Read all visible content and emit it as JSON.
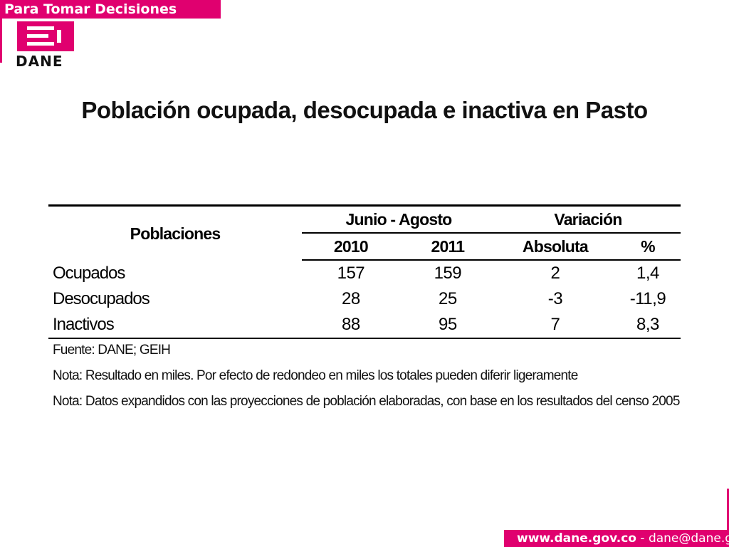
{
  "header": {
    "banner_text": "Para Tomar Decisiones",
    "logo_text": "DANE",
    "brand_color": "#e0006f"
  },
  "page": {
    "title": "Población ocupada, desocupada e inactiva en Pasto"
  },
  "table": {
    "col_poblaciones": "Poblaciones",
    "group_periodo": "Junio - Agosto",
    "group_variacion": "Variación",
    "sub_2010": "2010",
    "sub_2011": "2011",
    "sub_absoluta": "Absoluta",
    "sub_pct": "%",
    "rows": [
      {
        "label": "Ocupados",
        "v2010": "157",
        "v2011": "159",
        "abs": "2",
        "pct": "1,4"
      },
      {
        "label": "Desocupados",
        "v2010": "28",
        "v2011": "25",
        "abs": "-3",
        "pct": "-11,9"
      },
      {
        "label": "Inactivos",
        "v2010": "88",
        "v2011": "95",
        "abs": "7",
        "pct": "8,3"
      }
    ]
  },
  "notes": {
    "fuente": "Fuente: DANE; GEIH",
    "nota1": "Nota: Resultado en miles. Por efecto de redondeo en miles los totales pueden diferir ligeramente",
    "nota2": "Nota: Datos expandidos con las proyecciones de población elaboradas, con base en los resultados del censo 2005"
  },
  "footer": {
    "site": "www.dane.gov.co",
    "separator": " - ",
    "email": "dane@dane.gov.co"
  }
}
